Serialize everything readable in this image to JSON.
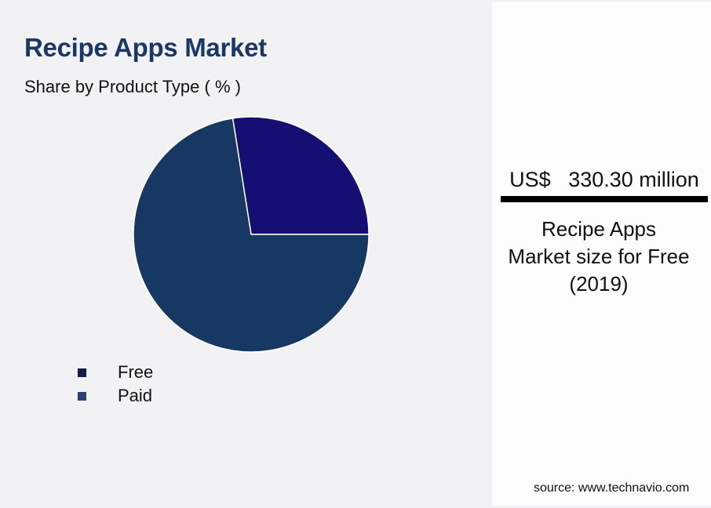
{
  "header": {
    "title": "Recipe Apps Market",
    "subtitle": "Share by Product Type ( % )"
  },
  "chart_data": {
    "type": "pie",
    "title": "Recipe Apps Market",
    "subtitle": "Share by Product Type ( % )",
    "categories": [
      "Free",
      "Paid"
    ],
    "values": [
      72.5,
      27.5
    ],
    "slice_colors": [
      "#173862",
      "#160f73"
    ],
    "legend_colors": [
      "#0f1f4a",
      "#2e4177"
    ],
    "start_angle_deg": 90,
    "direction": "counterclockwise",
    "legend_position": "bottom-left"
  },
  "legend": {
    "items": [
      {
        "label": "Free",
        "color": "#0f1f4a"
      },
      {
        "label": "Paid",
        "color": "#2e4177"
      }
    ]
  },
  "stat_panel": {
    "value": "US$   330.30 million",
    "caption_lines": [
      "Recipe Apps",
      "Market size for Free",
      "(2019)"
    ]
  },
  "footer": {
    "source": "source: www.technavio.com"
  }
}
